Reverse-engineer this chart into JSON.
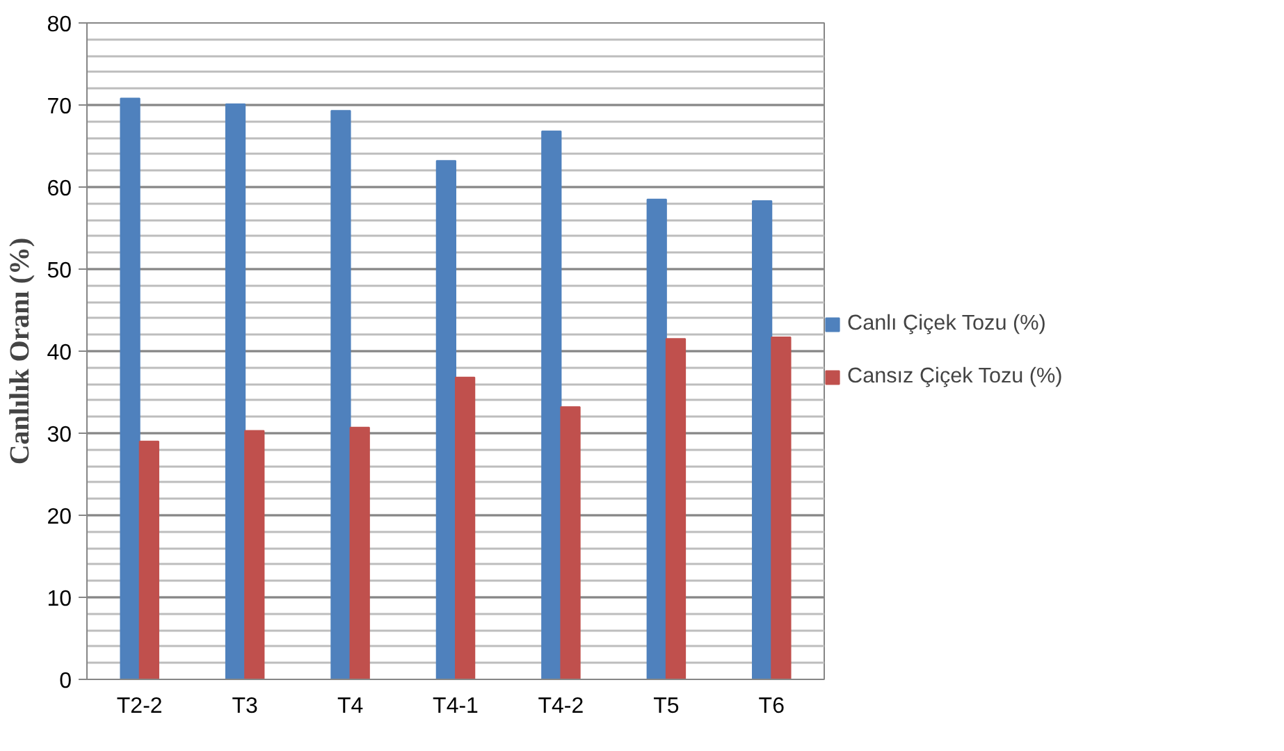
{
  "chart_data": {
    "type": "bar",
    "ylabel": "Canlılık Oranı (%)",
    "categories": [
      "T2-2",
      "T3",
      "T4",
      "T4-1",
      "T4-2",
      "T5",
      "T6"
    ],
    "series": [
      {
        "name": "Canlı Çiçek Tozu (%)",
        "color": "#4f81bd",
        "values": [
          70.8,
          70.1,
          69.3,
          63.2,
          66.8,
          58.5,
          58.3
        ]
      },
      {
        "name": "Cansız Çiçek Tozu (%)",
        "color": "#c0504d",
        "values": [
          29.0,
          30.3,
          30.7,
          36.8,
          33.2,
          41.5,
          41.7
        ]
      }
    ],
    "ylim": [
      0,
      80
    ],
    "yticks": [
      0,
      10,
      20,
      30,
      40,
      50,
      60,
      70,
      80
    ],
    "grid": "y",
    "legend": "right"
  }
}
